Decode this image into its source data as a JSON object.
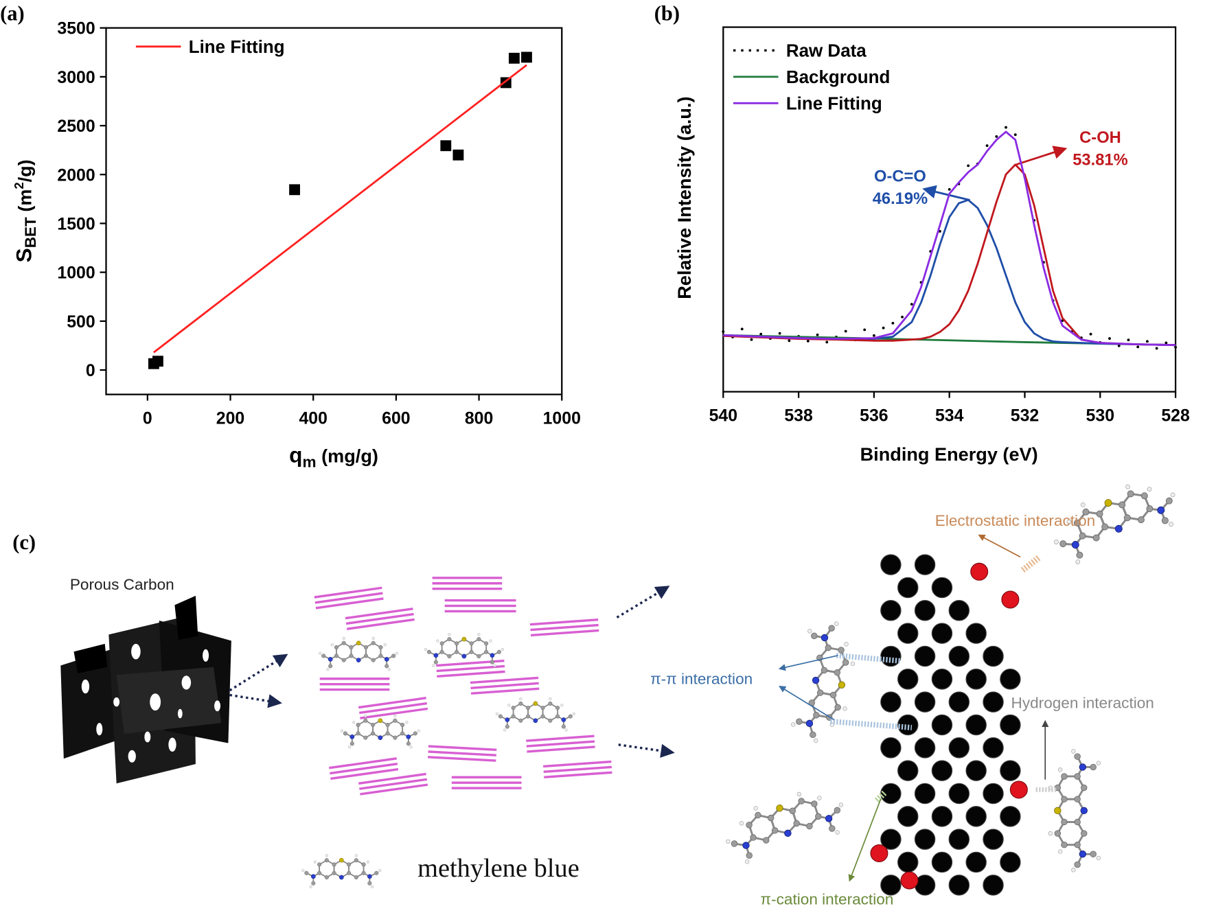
{
  "chart_data": [
    {
      "type": "scatter",
      "panel_label": "(a)",
      "xlabel": [
        "q",
        "m",
        " (mg/g)"
      ],
      "ylabel": [
        "S",
        "BET",
        " (m",
        "2",
        "/g)"
      ],
      "xlim": [
        -100,
        1000
      ],
      "ylim": [
        -250,
        3500
      ],
      "xticks": [
        0,
        200,
        400,
        600,
        800,
        1000
      ],
      "yticks": [
        0,
        500,
        1000,
        1500,
        2000,
        2500,
        3000,
        3500
      ],
      "legend": "upper left",
      "series": [
        {
          "marker": "square",
          "color": "#000000",
          "x": [
            15,
            25,
            355,
            720,
            750,
            865,
            885,
            915
          ],
          "values": [
            65,
            90,
            1845,
            2295,
            2200,
            2940,
            3190,
            3200
          ]
        },
        {
          "name": "Line Fitting",
          "color": "#ff2020",
          "x": [
            15,
            915
          ],
          "values": [
            180,
            3120
          ]
        }
      ]
    },
    {
      "type": "line",
      "panel_label": "(b)",
      "xlabel": [
        "Binding Energy (eV)"
      ],
      "ylabel": [
        "Relative Intensity (a.u.)"
      ],
      "xlim": [
        540,
        528
      ],
      "ylim": [
        0,
        100
      ],
      "xticks": [
        540,
        538,
        536,
        534,
        532,
        530,
        528
      ],
      "legend": "upper left",
      "series": [
        {
          "name": "Raw Data",
          "marker": "dot",
          "color": "#000000",
          "x": [
            540,
            539.75,
            539.5,
            539.25,
            539,
            538.75,
            538.5,
            538.25,
            538,
            537.75,
            537.5,
            537.25,
            537,
            536.75,
            536.5,
            536.25,
            536,
            535.75,
            535.5,
            535.25,
            535,
            534.75,
            534.5,
            534.25,
            534,
            533.75,
            533.5,
            533.25,
            533,
            532.75,
            532.5,
            532.25,
            532,
            531.75,
            531.5,
            531.25,
            531,
            530.75,
            530.5,
            530.25,
            530,
            529.75,
            529.5,
            529.25,
            529,
            528.75,
            528.5,
            528.25,
            528
          ],
          "values": [
            16.5,
            15.0,
            17.2,
            14.3,
            15.8,
            14.6,
            16.0,
            14.0,
            15.2,
            13.9,
            15.6,
            13.6,
            15.0,
            16.6,
            14.2,
            17.0,
            15.4,
            17.5,
            18.8,
            20.5,
            24.0,
            30.0,
            38.5,
            44.0,
            55.5,
            57.0,
            62.0,
            62.5,
            67.5,
            70.0,
            72.5,
            70.5,
            59.0,
            47.0,
            35.5,
            25.0,
            19.5,
            16.5,
            14.8,
            15.8,
            13.5,
            14.6,
            12.6,
            14.2,
            12.3,
            13.8,
            11.9,
            13.4,
            12.2
          ]
        },
        {
          "name": "Background",
          "color": "#1e7a3c",
          "x": [
            540,
            536,
            532,
            528
          ],
          "values": [
            15.5,
            14.6,
            13.6,
            12.8
          ]
        },
        {
          "color": "#1f4ea8",
          "x": [
            540,
            539,
            538,
            537,
            536,
            535.5,
            535,
            534.75,
            534.5,
            534.25,
            534,
            533.75,
            533.5,
            533.25,
            533,
            532.75,
            532.5,
            532.25,
            532,
            531.75,
            531.5,
            531.25,
            531,
            530.5,
            530,
            529,
            528
          ],
          "values": [
            15.5,
            15.1,
            14.7,
            14.5,
            14.5,
            15.1,
            19.1,
            24.5,
            31.9,
            40.4,
            47.9,
            51.7,
            52.6,
            50.4,
            45.7,
            39.4,
            31.9,
            24.5,
            19.1,
            16.0,
            14.5,
            13.8,
            13.6,
            13.4,
            13.2,
            13.0,
            12.8
          ]
        },
        {
          "color": "#c0181e",
          "x": [
            540,
            539,
            538,
            537,
            536,
            535.5,
            535,
            534.75,
            534.5,
            534.25,
            534,
            533.75,
            533.5,
            533.25,
            533,
            532.75,
            532.5,
            532.25,
            532,
            531.75,
            531.5,
            531.25,
            531,
            530.5,
            530,
            529,
            528
          ],
          "values": [
            15.3,
            14.9,
            14.5,
            14.3,
            14.0,
            14.0,
            14.3,
            14.5,
            15.1,
            16.4,
            18.5,
            22.3,
            27.7,
            35.1,
            43.6,
            52.1,
            59.6,
            62.3,
            59.6,
            51.1,
            39.4,
            27.7,
            20.2,
            14.3,
            13.4,
            13.0,
            12.8
          ]
        },
        {
          "name": "Line Fitting",
          "color": "#8a2be2",
          "x": [
            540,
            539,
            538,
            537,
            536,
            535.5,
            535,
            534.75,
            534.5,
            534.25,
            534,
            533.75,
            533.5,
            533.25,
            533,
            532.75,
            532.5,
            532.25,
            532,
            531.75,
            531.5,
            531.25,
            531,
            530.5,
            530,
            529,
            528
          ],
          "values": [
            15.5,
            15.1,
            14.7,
            14.5,
            14.7,
            16.0,
            22.3,
            28.7,
            37.2,
            45.7,
            54.3,
            57.4,
            60.2,
            62.3,
            66.0,
            69.1,
            71.3,
            69.1,
            58.5,
            45.7,
            34.0,
            24.5,
            18.1,
            14.3,
            13.4,
            13.0,
            12.8
          ]
        }
      ],
      "annotations": [
        {
          "text": "O-C=O",
          "color": "#1f4ea8"
        },
        {
          "text": "46.19%",
          "color": "#1f4ea8"
        },
        {
          "text": "C-OH",
          "color": "#c0181e"
        },
        {
          "text": "53.81%",
          "color": "#c0181e"
        }
      ]
    }
  ],
  "diagram": {
    "panel_label": "(c)",
    "porous_carbon": "Porous Carbon",
    "methylene_blue": "methylene blue",
    "electrostatic": "Electrostatic interaction",
    "pi_pi": "π-π interaction",
    "hydrogen": "Hydrogen interaction",
    "pi_cation": "π-cation interaction"
  }
}
